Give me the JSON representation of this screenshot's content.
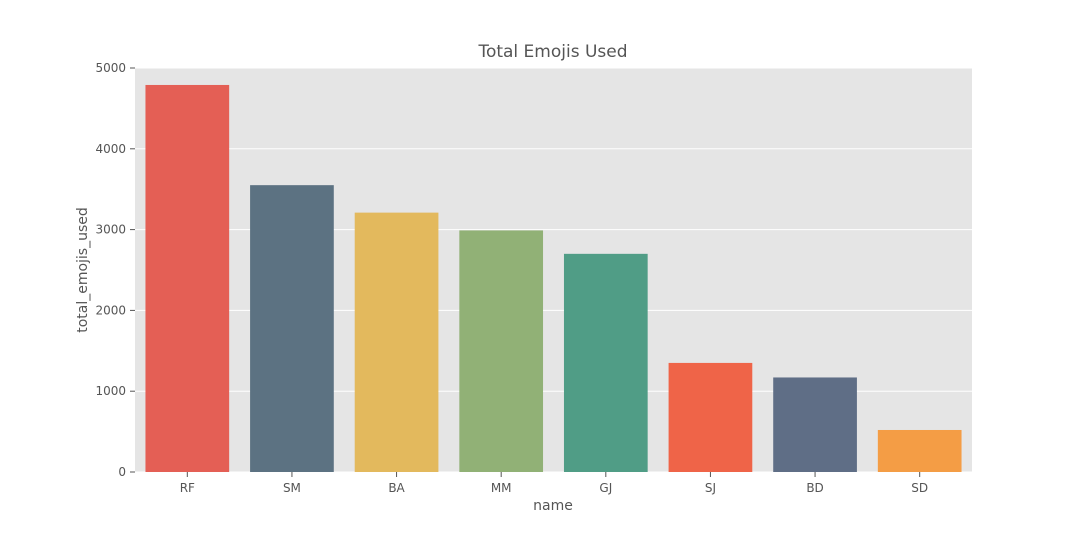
{
  "chart_data": {
    "type": "bar",
    "title": "Total Emojis Used",
    "xlabel": "name",
    "ylabel": "total_emojis_used",
    "categories": [
      "RF",
      "SM",
      "BA",
      "MM",
      "GJ",
      "SJ",
      "BD",
      "SD"
    ],
    "values": [
      4790,
      3550,
      3210,
      2990,
      2700,
      1350,
      1170,
      520
    ],
    "colors": [
      "#e45f55",
      "#5c7282",
      "#e3b95d",
      "#91b176",
      "#509d86",
      "#ef6448",
      "#5f6e86",
      "#f49d45"
    ],
    "yticks": [
      0,
      1000,
      2000,
      3000,
      4000,
      5000
    ],
    "ylim": [
      0,
      5000
    ],
    "grid": true,
    "background": "#e5e5e5",
    "gridline_color": "#ffffff"
  }
}
